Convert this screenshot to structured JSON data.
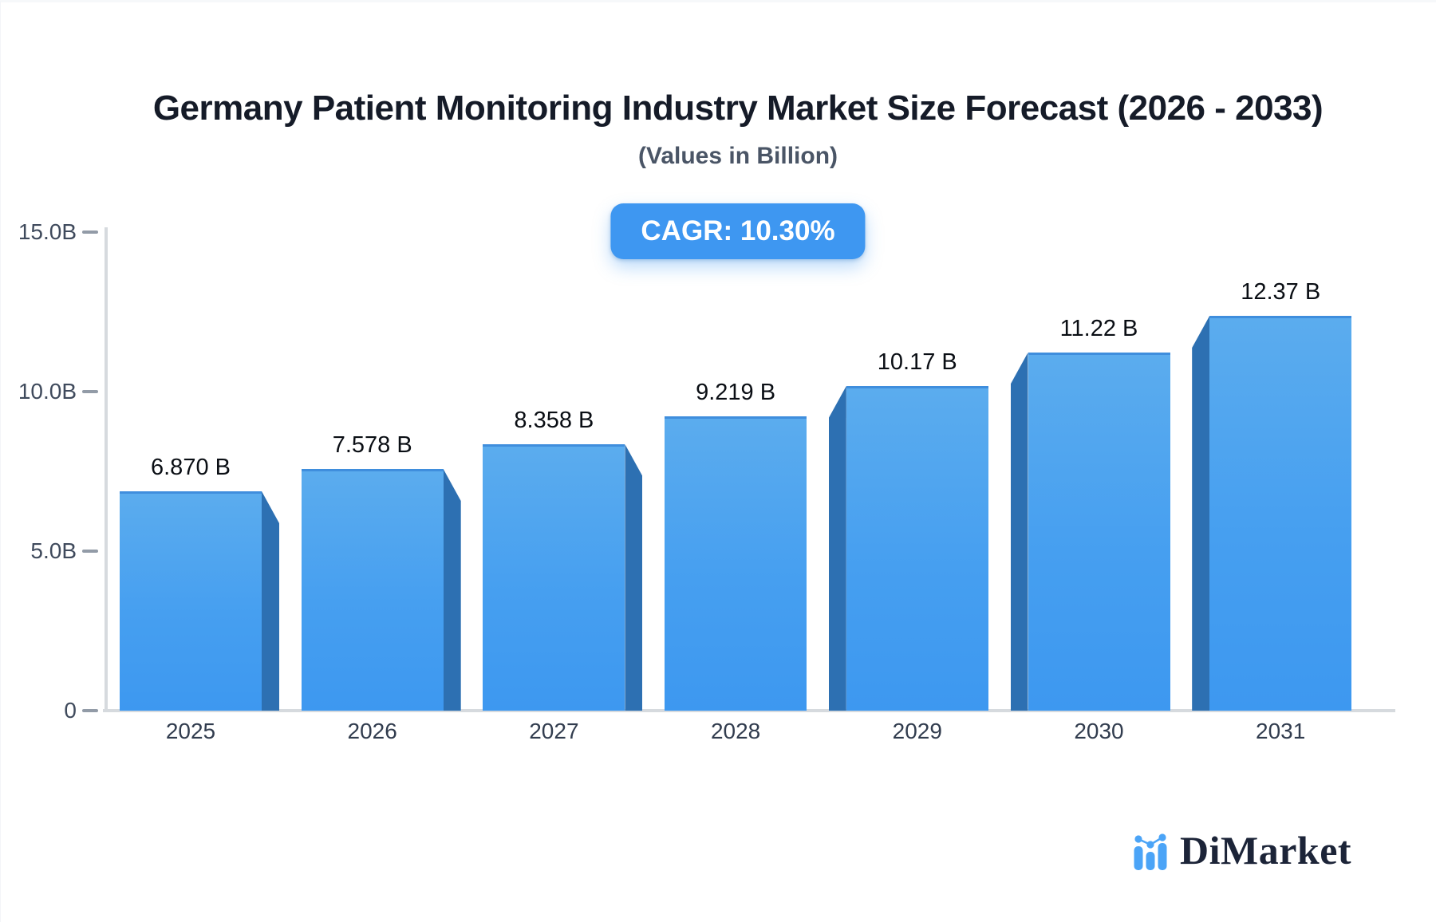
{
  "header": {
    "title": "Germany Patient Monitoring Industry Market Size Forecast (2026 - 2033)",
    "subtitle": "(Values in Billion)",
    "cagr_badge": "CAGR: 10.30%"
  },
  "chart_data": {
    "type": "bar",
    "categories": [
      "2025",
      "2026",
      "2027",
      "2028",
      "2029",
      "2030",
      "2031"
    ],
    "values": [
      6.87,
      7.578,
      8.358,
      9.219,
      10.17,
      11.22,
      12.37
    ],
    "value_labels": [
      "6.870 B",
      "7.578 B",
      "8.358 B",
      "9.219 B",
      "10.17 B",
      "11.22 B",
      "12.37 B"
    ],
    "title": "Germany Patient Monitoring Industry Market Size Forecast (2026 - 2033)",
    "xlabel": "",
    "ylabel": "Values in Billion",
    "ylim": [
      0,
      15
    ],
    "y_ticks": [
      {
        "label": "0",
        "value": 0
      },
      {
        "label": "5.0B",
        "value": 5
      },
      {
        "label": "10.0B",
        "value": 10
      },
      {
        "label": "15.0B",
        "value": 15
      }
    ],
    "grid": false,
    "legend": false,
    "cagr": "10.30%"
  },
  "colors": {
    "bar_face": "#3f99f0",
    "bar_face_light": "#5bacee",
    "bar_side": "#2d70b2",
    "badge_bg": "#3e97f1",
    "axis_line": "#d6dade",
    "tick_text": "#3f4a5c",
    "title_text": "#151b28",
    "logo_navy": "#1c2438",
    "logo_blue": "#4ba4f7"
  },
  "logo": {
    "text": "DiMarket",
    "icon": "bar-chart-logo-icon"
  }
}
